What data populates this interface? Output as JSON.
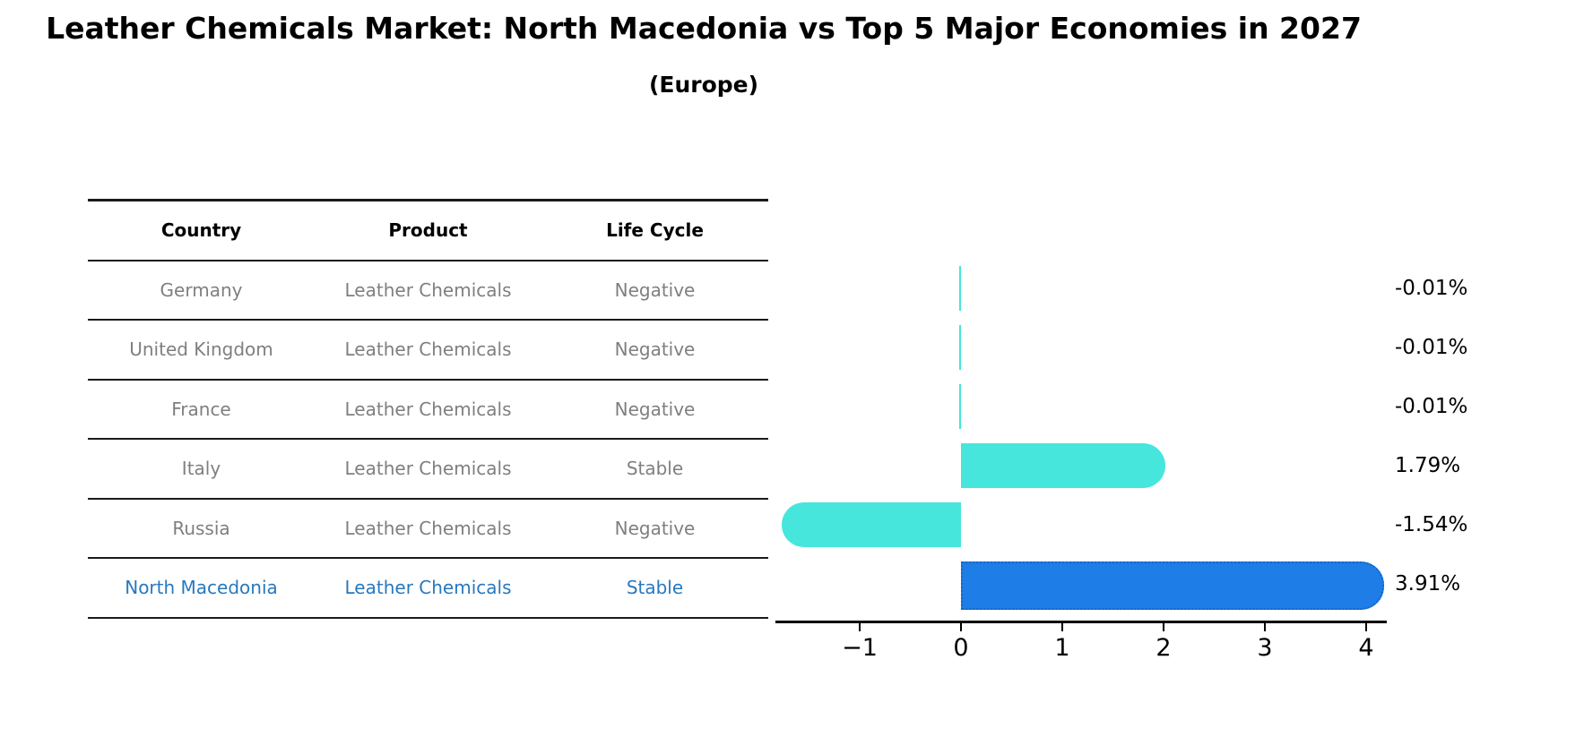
{
  "title": "Leather Chemicals Market: North Macedonia vs Top 5 Major Economies in 2027",
  "subtitle": "(Europe)",
  "table": {
    "headers": [
      "Country",
      "Product",
      "Life Cycle"
    ],
    "rows": [
      {
        "country": "Germany",
        "product": "Leather Chemicals",
        "life_cycle": "Negative"
      },
      {
        "country": "United Kingdom",
        "product": "Leather Chemicals",
        "life_cycle": "Negative"
      },
      {
        "country": "France",
        "product": "Leather Chemicals",
        "life_cycle": "Negative"
      },
      {
        "country": "Italy",
        "product": "Leather Chemicals",
        "life_cycle": "Stable"
      },
      {
        "country": "Russia",
        "product": "Leather Chemicals",
        "life_cycle": "Negative"
      },
      {
        "country": "North Macedonia",
        "product": "Leather Chemicals",
        "life_cycle": "Stable"
      }
    ]
  },
  "chart_data": {
    "type": "bar",
    "orientation": "horizontal",
    "title": "Leather Chemicals Market: North Macedonia vs Top 5 Major Economies in 2027",
    "subtitle": "(Europe)",
    "categories": [
      "Germany",
      "United Kingdom",
      "France",
      "Italy",
      "Russia",
      "North Macedonia"
    ],
    "values": [
      -0.01,
      -0.01,
      -0.01,
      1.79,
      -1.54,
      3.91
    ],
    "value_labels": [
      "-0.01%",
      "-0.01%",
      "-0.01%",
      "1.79%",
      "-1.54%",
      "3.91%"
    ],
    "xticks": [
      -1,
      0,
      1,
      2,
      3,
      4
    ],
    "xtick_labels": [
      "−1",
      "0",
      "1",
      "2",
      "3",
      "4"
    ],
    "xlim": [
      -1.84,
      4.2
    ],
    "grid": false,
    "legend": "none",
    "bar_color": "#46E6DC",
    "highlight_color": "#1E7DE6",
    "highlight_border_color": "#1565C8",
    "highlight_index": 5
  },
  "colors": {
    "row_text": "#7f7f7f",
    "highlight_text": "#2878BE",
    "axis": "#000000"
  }
}
